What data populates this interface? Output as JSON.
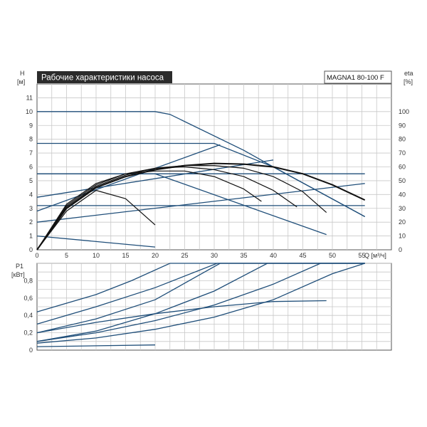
{
  "chart_data": [
    {
      "type": "line",
      "title": "Рабочие характеристики насоса",
      "model": "MAGNA1 80-100 F",
      "xlabel": "Q [м³/ч]",
      "ylabel_left": "H",
      "ylabel_left_unit": "[м]",
      "ylabel_right": "eta",
      "ylabel_right_unit": "[%]",
      "xlim": [
        0,
        60
      ],
      "ylim": [
        0,
        12
      ],
      "y2lim": [
        0,
        120
      ],
      "grid": true,
      "x_ticks": [
        "0",
        "5",
        "10",
        "15",
        "20",
        "25",
        "30",
        "35",
        "40",
        "45",
        "50",
        "55"
      ],
      "y_ticks": [
        "0",
        "1",
        "2",
        "3",
        "4",
        "5",
        "6",
        "7",
        "8",
        "9",
        "10",
        "11"
      ],
      "y2_ticks": [
        "0",
        "10",
        "20",
        "30",
        "40",
        "50",
        "60",
        "70",
        "80",
        "90",
        "100"
      ],
      "head_series": [
        {
          "x": [
            0,
            20,
            22.5,
            35,
            40,
            55.5
          ],
          "y": [
            10,
            10,
            9.8,
            7.2,
            6,
            2.4
          ]
        },
        {
          "x": [
            0,
            30,
            40,
            55.5
          ],
          "y": [
            7.7,
            7.7,
            6,
            2.4
          ]
        },
        {
          "x": [
            0,
            55.5
          ],
          "y": [
            5.5,
            5.5
          ]
        },
        {
          "x": [
            0,
            20,
            49
          ],
          "y": [
            5.5,
            5.5,
            1.1
          ]
        },
        {
          "x": [
            0,
            55.5
          ],
          "y": [
            3.2,
            3.2
          ]
        },
        {
          "x": [
            0,
            20
          ],
          "y": [
            1,
            0.2
          ]
        },
        {
          "x": [
            0,
            31
          ],
          "y": [
            2.8,
            7.6
          ]
        },
        {
          "x": [
            0,
            40
          ],
          "y": [
            3.8,
            6.5
          ]
        },
        {
          "x": [
            0,
            55.5
          ],
          "y": [
            2,
            4.8
          ]
        }
      ],
      "eta_series": [
        {
          "x": [
            0,
            5,
            10,
            15,
            20,
            25,
            30,
            35,
            40,
            45,
            50,
            55.5
          ],
          "y": [
            0,
            30,
            45,
            53,
            58,
            61,
            62.5,
            62,
            60,
            55,
            47,
            36
          ]
        },
        {
          "x": [
            0,
            5,
            10,
            15,
            20,
            25,
            30,
            35,
            40,
            45,
            49
          ],
          "y": [
            0,
            31,
            46,
            54,
            59,
            61,
            61,
            59,
            53,
            42,
            27
          ]
        },
        {
          "x": [
            0,
            5,
            10,
            15,
            20,
            25,
            30,
            35,
            40,
            44
          ],
          "y": [
            0,
            32,
            47,
            55,
            59,
            60,
            58,
            53,
            43,
            31
          ]
        },
        {
          "x": [
            0,
            5,
            10,
            15,
            20,
            25,
            30,
            35,
            38
          ],
          "y": [
            0,
            33,
            48,
            55,
            57,
            57,
            53,
            44,
            35
          ]
        },
        {
          "x": [
            0,
            5,
            10,
            15,
            20
          ],
          "y": [
            0,
            28,
            43,
            37,
            18
          ]
        }
      ]
    },
    {
      "type": "line",
      "ylabel": "P1",
      "ylabel_unit": "[кВт]",
      "xlim": [
        0,
        60
      ],
      "ylim": [
        0,
        1.0
      ],
      "grid": true,
      "x_ticks": [
        "0",
        "5",
        "10",
        "15",
        "20",
        "25",
        "30",
        "35",
        "40",
        "45",
        "50",
        "55"
      ],
      "y_ticks": [
        "0",
        "0,2",
        "0,4",
        "0,6",
        "0,8"
      ],
      "series": [
        {
          "x": [
            0,
            10,
            16,
            22.5,
            55.5
          ],
          "y": [
            0.44,
            0.64,
            0.8,
            1.0,
            1.0
          ]
        },
        {
          "x": [
            0,
            10,
            20,
            30.5,
            55.5
          ],
          "y": [
            0.3,
            0.5,
            0.72,
            1.0,
            1.0
          ]
        },
        {
          "x": [
            0,
            10,
            20,
            31,
            55.5
          ],
          "y": [
            0.2,
            0.36,
            0.58,
            1.0,
            1.0
          ]
        },
        {
          "x": [
            0,
            10,
            20,
            30,
            39,
            55.5
          ],
          "y": [
            0.1,
            0.22,
            0.42,
            0.68,
            1.0,
            1.0
          ]
        },
        {
          "x": [
            0,
            10,
            20,
            30,
            40,
            48,
            55.5
          ],
          "y": [
            0.1,
            0.2,
            0.34,
            0.52,
            0.76,
            1.0,
            1.0
          ]
        },
        {
          "x": [
            0,
            10,
            20,
            30,
            40,
            50,
            55.5
          ],
          "y": [
            0.08,
            0.14,
            0.24,
            0.38,
            0.58,
            0.88,
            1.0
          ]
        },
        {
          "x": [
            0,
            10,
            20,
            30,
            40,
            49
          ],
          "y": [
            0.2,
            0.32,
            0.42,
            0.5,
            0.56,
            0.57
          ]
        },
        {
          "x": [
            0,
            10,
            20
          ],
          "y": [
            0.04,
            0.05,
            0.06
          ]
        }
      ]
    }
  ]
}
